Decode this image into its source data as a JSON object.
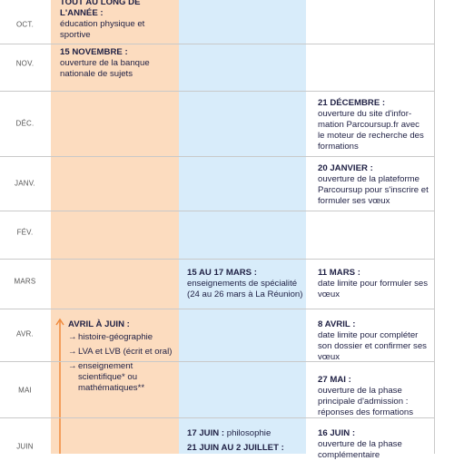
{
  "rows": [
    {
      "month": "OCT.",
      "col1": [
        {
          "date": "TOUT AU LONG DE L'ANNÉE :",
          "text": "éducation physique et sportive"
        }
      ]
    },
    {
      "month": "NOV.",
      "col1": [
        {
          "date": "15 NOVEMBRE :",
          "text": "ouverture de la banque nationale de sujets"
        }
      ]
    },
    {
      "month": "DÉC.",
      "col3": [
        {
          "date": "21 DÉCEMBRE :",
          "text": "ouverture du site d'infor-mation Parcoursup.fr avec le moteur de recherche des formations"
        }
      ]
    },
    {
      "month": "JANV.",
      "col3": [
        {
          "date": "20 JANVIER :",
          "text": "ouverture de la plateforme Parcoursup pour s'inscrire et formuler ses vœux"
        }
      ]
    },
    {
      "month": "FÉV."
    },
    {
      "month": "MARS",
      "col2": [
        {
          "date": "15 AU 17 MARS :",
          "text": "enseignements de spécialité (24 au 26 mars à La Réunion)"
        }
      ],
      "col3": [
        {
          "date": "11 MARS :",
          "text": "date limite pour formuler ses vœux"
        }
      ]
    },
    {
      "month": "AVR.",
      "col1": [
        {
          "date": "AVRIL À JUIN :",
          "bullets": [
            "histoire-géographie",
            "LVA et LVB (écrit et oral)",
            "enseignement scientifique* ou mathématiques**"
          ]
        }
      ],
      "col3": [
        {
          "date": "8 AVRIL :",
          "text": "date limite pour compléter son dossier et confirmer ses vœux"
        }
      ]
    },
    {
      "month": "MAI",
      "col3": [
        {
          "date": "27 MAI :",
          "text": "ouverture de la phase principale d'admission : réponses des formations"
        }
      ]
    },
    {
      "month": "JUIN",
      "col2": [
        {
          "date": "17 JUIN :",
          "text": "philosophie"
        },
        {
          "date": "21 JUIN AU 2 JUILLET :"
        }
      ],
      "col3": [
        {
          "date": "16 JUIN :",
          "text": "ouverture de la phase complémentaire"
        }
      ]
    }
  ]
}
